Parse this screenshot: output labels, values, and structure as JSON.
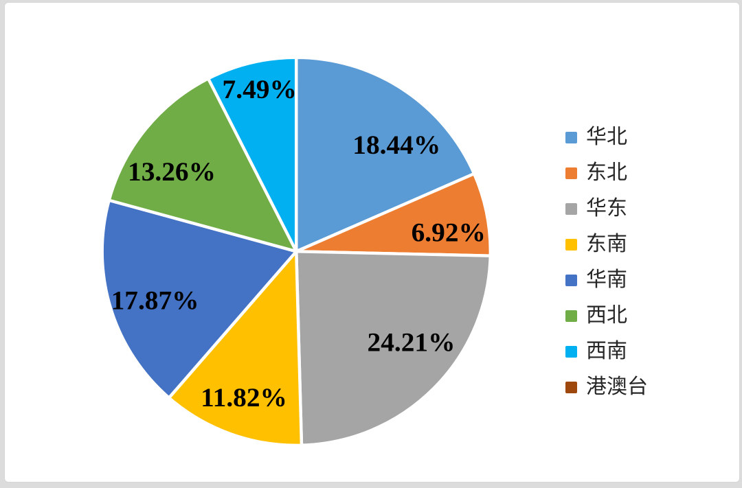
{
  "chart_data": {
    "type": "pie",
    "title": "",
    "unit": "%",
    "categories": [
      "华北",
      "东北",
      "华东",
      "东南",
      "华南",
      "西北",
      "西南",
      "港澳台"
    ],
    "values": [
      18.44,
      6.92,
      24.21,
      11.82,
      17.87,
      13.26,
      7.49,
      0
    ],
    "labels": [
      "18.44%",
      "6.92%",
      "24.21%",
      "11.82%",
      "17.87%",
      "13.26%",
      "7.49%",
      ""
    ],
    "colors": [
      "#5B9BD5",
      "#ED7D31",
      "#A5A5A5",
      "#FFC000",
      "#4472C4",
      "#70AD47",
      "#00B0F0",
      "#9E480E"
    ],
    "start_angle_deg": 0,
    "direction": "clockwise",
    "legend_position": "right",
    "slice_separator_color": "#FFFFFF",
    "data_label_color": "#000000",
    "legend_text_color": "#262626",
    "background_color": "#FFFFFF",
    "frame_color": "#DCDCDC"
  }
}
